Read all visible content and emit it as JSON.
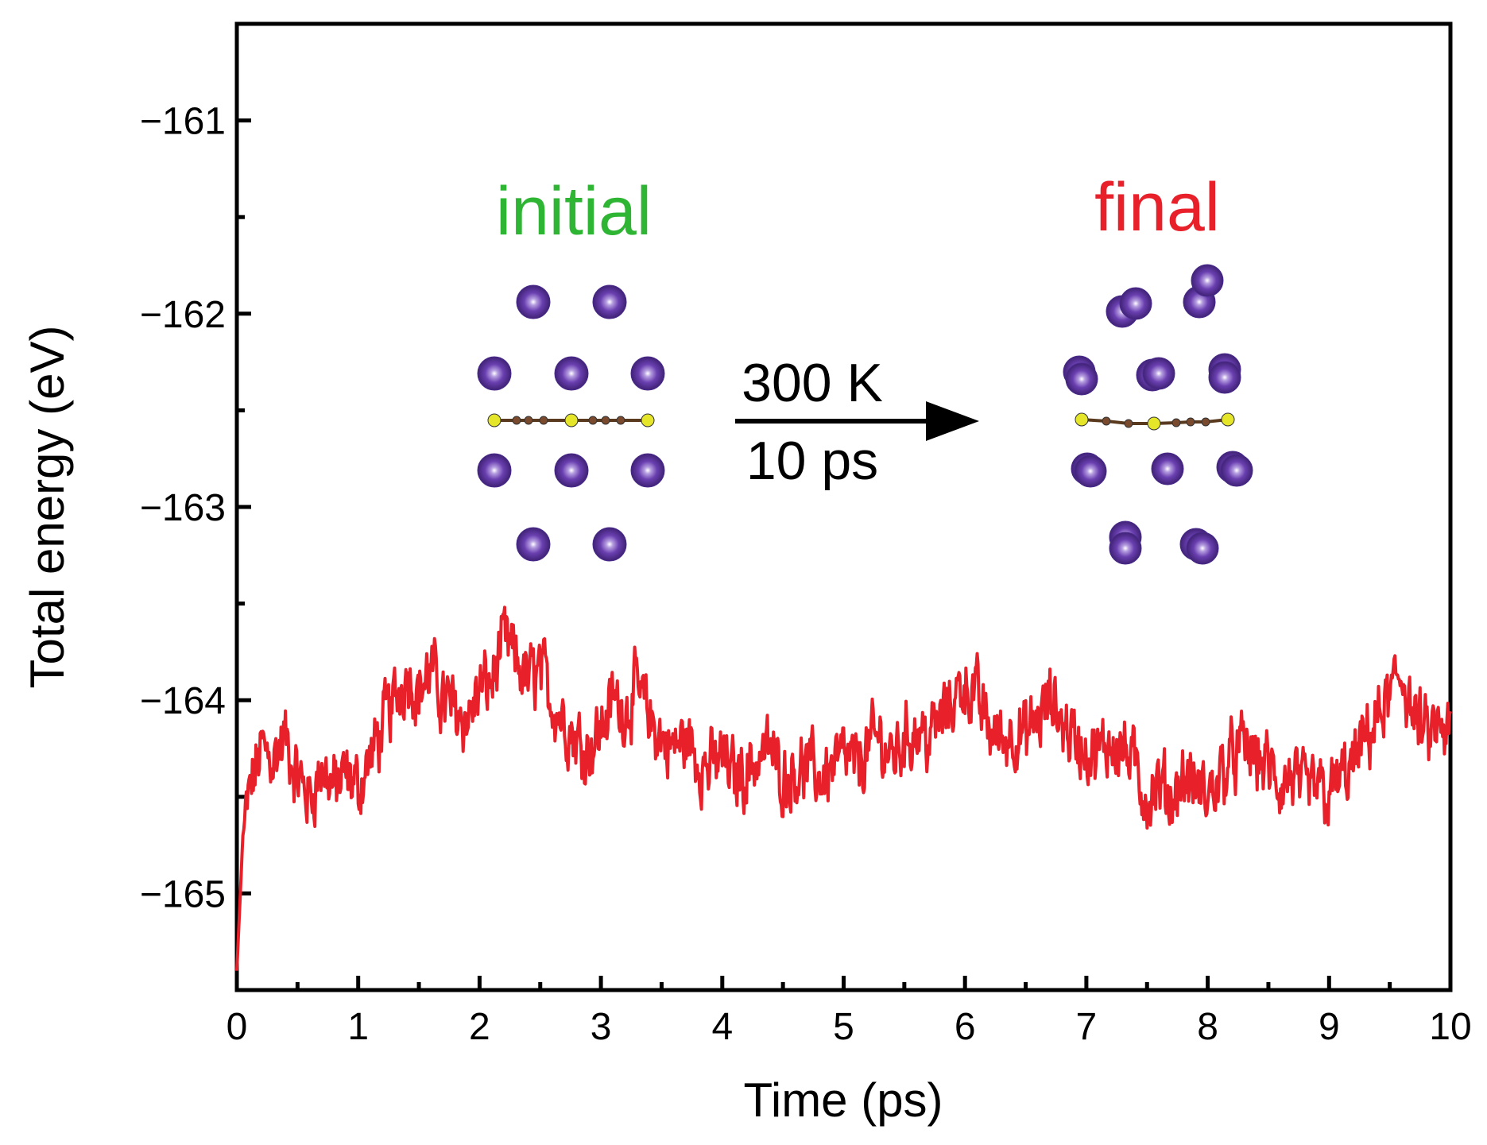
{
  "chart_data": {
    "type": "line",
    "title": "",
    "xlabel": "Time (ps)",
    "ylabel": "Total energy (eV)",
    "xlim": [
      0,
      10
    ],
    "ylim": [
      -165.5,
      -160.5
    ],
    "x_ticks": [
      0,
      1,
      2,
      3,
      4,
      5,
      6,
      7,
      8,
      9,
      10
    ],
    "y_ticks": [
      -165,
      -164,
      -163,
      -162,
      -161
    ],
    "x_tick_labels": [
      "0",
      "1",
      "2",
      "3",
      "4",
      "5",
      "6",
      "7",
      "8",
      "9",
      "10"
    ],
    "y_tick_labels": [
      "−165",
      "−164",
      "−163",
      "−162",
      "−161"
    ],
    "grid": false,
    "series": [
      {
        "name": "Total energy",
        "color": "#e8202a",
        "x": [
          0,
          0.05,
          0.1,
          0.2,
          0.3,
          0.4,
          0.5,
          0.6,
          0.7,
          0.8,
          0.9,
          1.0,
          1.1,
          1.2,
          1.3,
          1.4,
          1.5,
          1.6,
          1.7,
          1.8,
          1.9,
          2.0,
          2.1,
          2.2,
          2.3,
          2.4,
          2.5,
          2.6,
          2.7,
          2.8,
          2.9,
          3.0,
          3.1,
          3.2,
          3.3,
          3.4,
          3.5,
          3.6,
          3.7,
          3.8,
          3.9,
          4.0,
          4.1,
          4.2,
          4.3,
          4.4,
          4.5,
          4.6,
          4.7,
          4.8,
          4.9,
          5.0,
          5.1,
          5.2,
          5.3,
          5.4,
          5.5,
          5.6,
          5.7,
          5.8,
          5.9,
          6.0,
          6.1,
          6.2,
          6.3,
          6.4,
          6.5,
          6.6,
          6.7,
          6.8,
          6.9,
          7.0,
          7.1,
          7.2,
          7.3,
          7.4,
          7.5,
          7.6,
          7.7,
          7.8,
          7.9,
          8.0,
          8.1,
          8.2,
          8.3,
          8.4,
          8.5,
          8.6,
          8.7,
          8.8,
          8.9,
          9.0,
          9.1,
          9.2,
          9.3,
          9.4,
          9.5,
          9.6,
          9.7,
          9.8,
          9.9,
          10.0
        ],
        "y": [
          -165.4,
          -164.7,
          -164.5,
          -164.25,
          -164.3,
          -164.2,
          -164.4,
          -164.5,
          -164.35,
          -164.45,
          -164.4,
          -164.45,
          -164.3,
          -164.15,
          -164.0,
          -163.85,
          -163.95,
          -163.85,
          -164.0,
          -164.05,
          -164.1,
          -163.95,
          -163.9,
          -163.7,
          -163.8,
          -163.9,
          -163.85,
          -164.0,
          -164.1,
          -164.2,
          -164.25,
          -164.15,
          -164.0,
          -164.05,
          -163.95,
          -164.1,
          -164.2,
          -164.25,
          -164.2,
          -164.3,
          -164.35,
          -164.3,
          -164.4,
          -164.35,
          -164.3,
          -164.25,
          -164.4,
          -164.35,
          -164.35,
          -164.4,
          -164.35,
          -164.3,
          -164.35,
          -164.25,
          -164.2,
          -164.3,
          -164.2,
          -164.15,
          -164.2,
          -164.1,
          -164.0,
          -163.9,
          -164.0,
          -164.15,
          -164.2,
          -164.15,
          -164.2,
          -164.1,
          -164.0,
          -164.1,
          -164.2,
          -164.25,
          -164.3,
          -164.2,
          -164.25,
          -164.35,
          -164.5,
          -164.45,
          -164.5,
          -164.4,
          -164.45,
          -164.5,
          -164.4,
          -164.3,
          -164.25,
          -164.3,
          -164.35,
          -164.45,
          -164.4,
          -164.5,
          -164.45,
          -164.5,
          -164.4,
          -164.35,
          -164.2,
          -164.1,
          -164.0,
          -163.85,
          -164.1,
          -164.2,
          -164.15,
          -164.2
        ]
      }
    ]
  },
  "inset": {
    "initial_label": "initial",
    "final_label": "final",
    "arrow_top_label": "300 K",
    "arrow_bottom_label": "10 ps",
    "colors": {
      "initial": "#2fb534",
      "final": "#e8202a",
      "atom": "#6a3fb0",
      "chain_end": "#e5e52a",
      "chain_mid": "#7a4a2e"
    }
  }
}
